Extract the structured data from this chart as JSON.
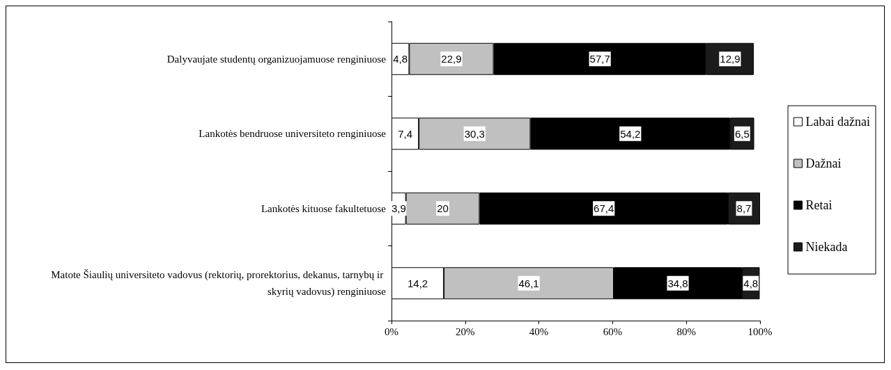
{
  "chart_data": {
    "type": "bar",
    "orientation": "horizontal",
    "stacked": true,
    "categories": [
      "Dalyvaujate studentų organizuojamuose renginiuose",
      "Lankotės bendruose universiteto renginiuose",
      "Lankotės kituose fakultetuose",
      "Matote Šiaulių universiteto vadovus (rektorių, prorektorius, dekanus, tarnybų ir skyrių vadovus) renginiuose"
    ],
    "series": [
      {
        "name": "Labai dažnai",
        "color": "#ffffff",
        "values": [
          4.8,
          7.4,
          3.9,
          14.2
        ],
        "value_labels": [
          "4,8",
          "7,4",
          "3,9",
          "14,2"
        ]
      },
      {
        "name": "Dažnai",
        "color": "#c0c0c0",
        "values": [
          22.9,
          30.3,
          20,
          46.1
        ],
        "value_labels": [
          "22,9",
          "30,3",
          "20",
          "46,1"
        ]
      },
      {
        "name": "Retai",
        "color": "#000000",
        "values": [
          57.7,
          54.2,
          67.4,
          34.8
        ],
        "value_labels": [
          "57,7",
          "54,2",
          "67,4",
          "34,8"
        ]
      },
      {
        "name": "Niekada",
        "color": "#1c1c1c",
        "values": [
          12.9,
          6.5,
          8.7,
          4.8
        ],
        "value_labels": [
          "12,9",
          "6,5",
          "8,7",
          "4,8"
        ]
      }
    ],
    "xlim": [
      0,
      100
    ],
    "xticks": [
      {
        "value": 0,
        "label": "0%"
      },
      {
        "value": 20,
        "label": "20%"
      },
      {
        "value": 40,
        "label": "40%"
      },
      {
        "value": 60,
        "label": "60%"
      },
      {
        "value": 80,
        "label": "80%"
      },
      {
        "value": 100,
        "label": "100%"
      }
    ],
    "grid": false,
    "legend": "right"
  }
}
